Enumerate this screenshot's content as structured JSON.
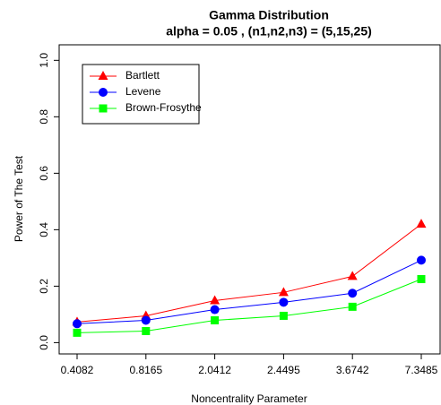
{
  "chart_data": {
    "type": "line",
    "title": "Gamma Distribution",
    "subtitle": "alpha = 0.05 , (n1,n2,n3) = (5,15,25)",
    "x_label": "Noncentrality Parameter",
    "y_label": "Power of The Test",
    "categories": [
      "0.4082",
      "0.8165",
      "2.0412",
      "2.4495",
      "3.6742",
      "7.3485"
    ],
    "ylim": [
      -0.04,
      1.055
    ],
    "yticks": [
      {
        "value": 0,
        "label": "0.0"
      },
      0.2,
      0.4,
      0.6,
      0.8,
      {
        "value": 1,
        "label": "1.0"
      }
    ],
    "legend": "top-left",
    "series": [
      {
        "name": "Bartlett",
        "color": "#ff0000",
        "marker": "triangle",
        "values": [
          0.073,
          0.095,
          0.149,
          0.178,
          0.235,
          0.42
        ]
      },
      {
        "name": "Levene",
        "color": "#0000ff",
        "marker": "circle",
        "values": [
          0.067,
          0.079,
          0.117,
          0.143,
          0.175,
          0.292
        ]
      },
      {
        "name": "Brown-Frosythe",
        "color": "#00ff00",
        "marker": "square",
        "values": [
          0.035,
          0.041,
          0.079,
          0.095,
          0.127,
          0.225
        ]
      }
    ]
  }
}
